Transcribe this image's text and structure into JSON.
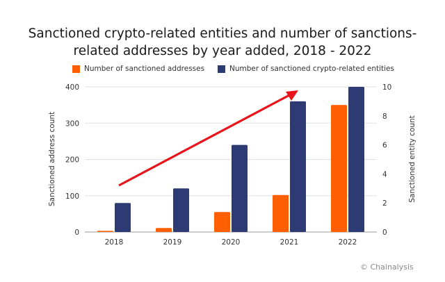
{
  "chart_data": {
    "type": "bar",
    "title": "Sanctioned crypto-related entities and number of sanctions-related addresses by year added, 2018 - 2022",
    "title_lines": [
      "Sanctioned crypto-related entities and number of sanctions-",
      "related addresses by year added, 2018 - 2022"
    ],
    "categories": [
      "2018",
      "2019",
      "2020",
      "2021",
      "2022"
    ],
    "series": [
      {
        "name": "Number of sanctioned addresses",
        "axis": "left",
        "color": "#ff5f00",
        "values": [
          3,
          11,
          55,
          102,
          350
        ]
      },
      {
        "name": "Number of sanctioned crypto-related entities",
        "axis": "right",
        "color": "#2e3a73",
        "values": [
          2,
          3,
          6,
          9,
          10
        ]
      }
    ],
    "ylabel": "Sanctioned address count",
    "ylabel_right": "Sanctioned entity count",
    "ylim": [
      0,
      400
    ],
    "ylim_right": [
      0,
      10
    ],
    "yticks": [
      "0",
      "100",
      "200",
      "300",
      "400"
    ],
    "yticks_right": [
      "0",
      "2",
      "4",
      "6",
      "8",
      "10"
    ],
    "grid": true,
    "legend_placement": "top",
    "annotation": "upward trend arrow",
    "arrow_color": "#e8141b"
  },
  "credit": "© Chainalysis"
}
